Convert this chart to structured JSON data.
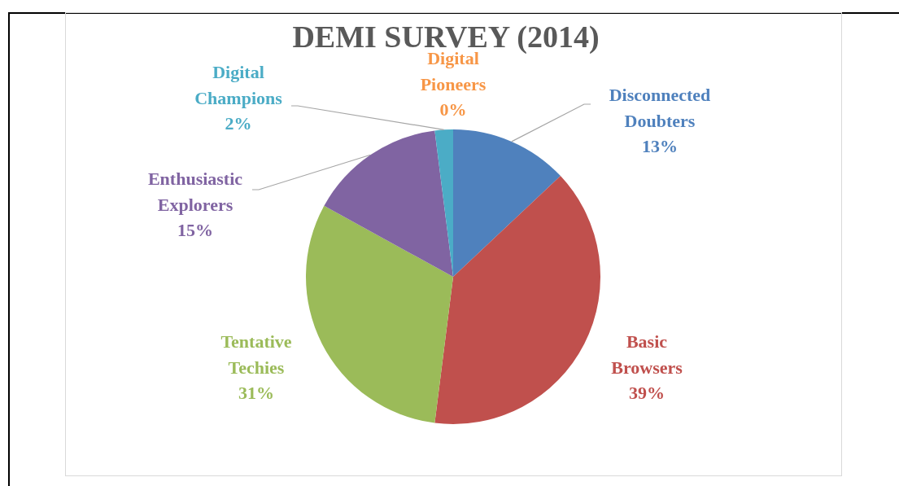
{
  "chart_data": {
    "type": "pie",
    "title": "DEMI SURVEY (2014)",
    "categories": [
      "Disconnected Doubters",
      "Basic Browsers",
      "Tentative Techies",
      "Enthusiastic Explorers",
      "Digital Champions",
      "Digital Pioneers"
    ],
    "values": [
      13,
      39,
      31,
      15,
      2,
      0
    ],
    "colors": [
      "#4f81bd",
      "#c0504d",
      "#9bbb59",
      "#8064a2",
      "#4bacc6",
      "#f79646"
    ],
    "value_labels": [
      "13%",
      "39%",
      "31%",
      "15%",
      "2%",
      "0%"
    ],
    "legend": false
  }
}
